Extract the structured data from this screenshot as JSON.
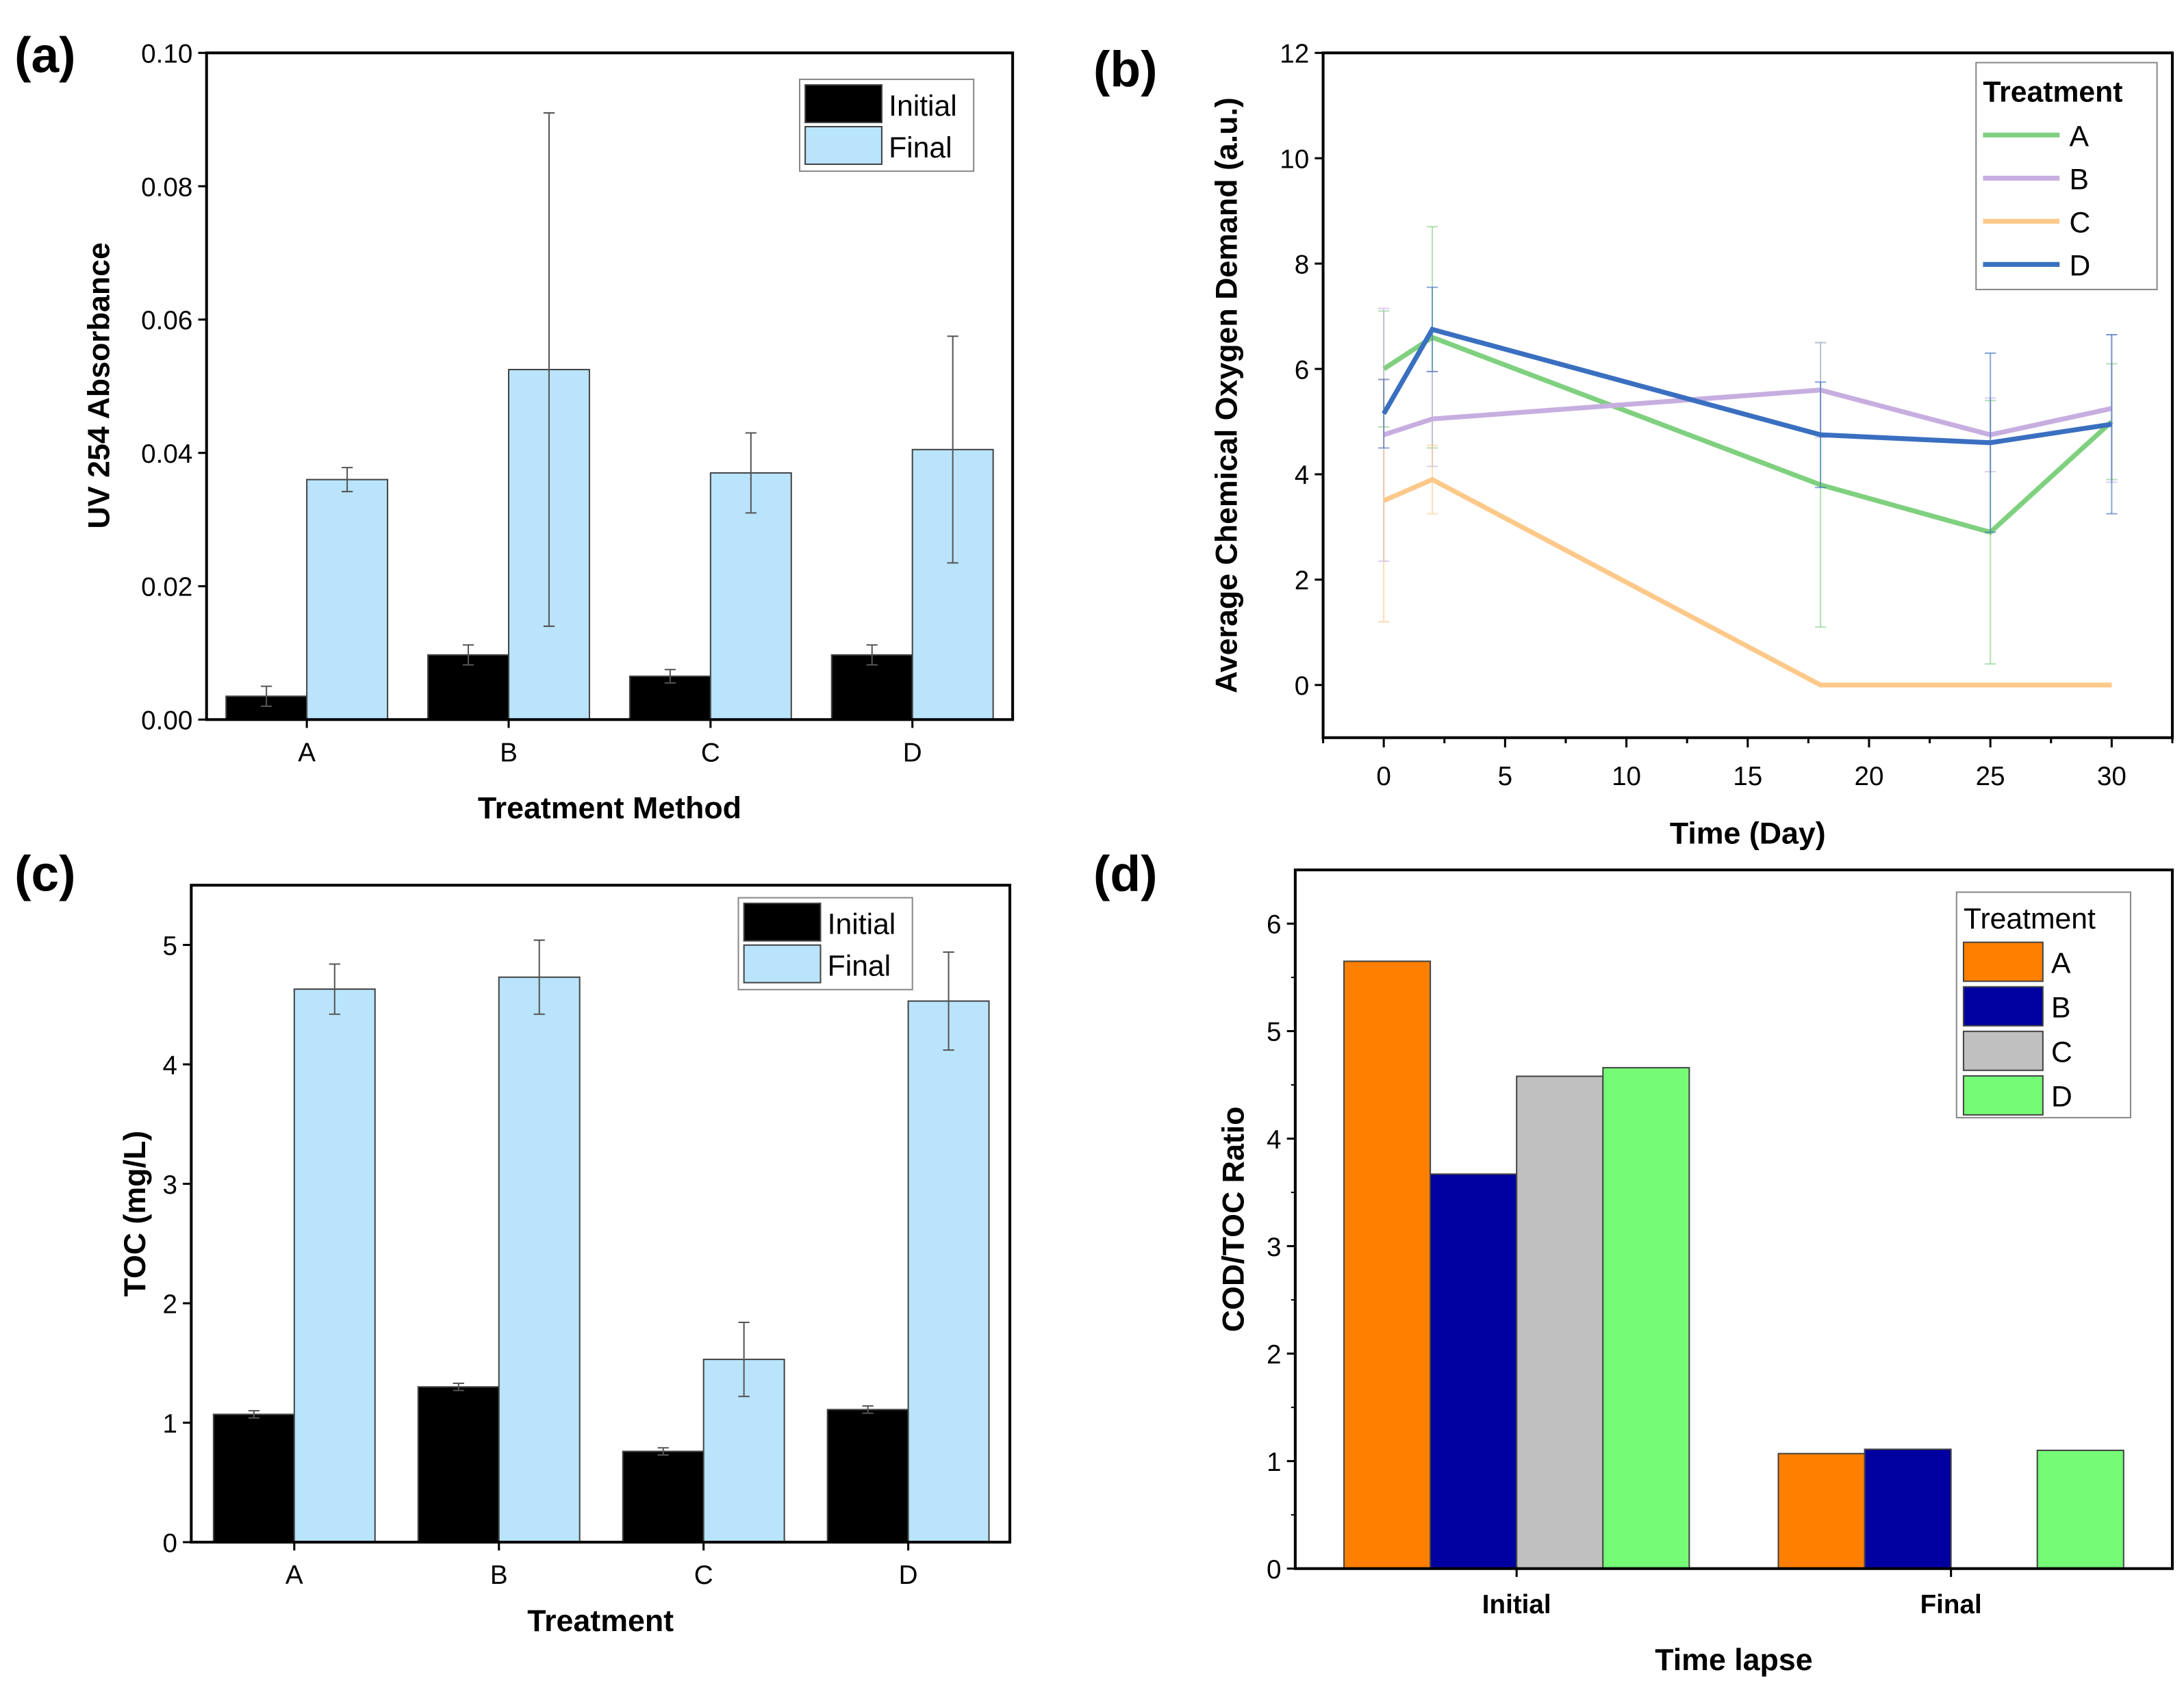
{
  "chart_data": [
    {
      "panel": "(a)",
      "type": "bar",
      "categories": [
        "A",
        "B",
        "C",
        "D"
      ],
      "series": [
        {
          "name": "Initial",
          "color": "#000000",
          "values": [
            0.0035,
            0.0097,
            0.0065,
            0.0097
          ],
          "errors": [
            0.0015,
            0.0015,
            0.001,
            0.0015
          ]
        },
        {
          "name": "Final",
          "color": "#b9e4fb",
          "values": [
            0.036,
            0.0525,
            0.037,
            0.0405
          ],
          "errors": [
            0.0018,
            0.0385,
            0.006,
            0.017
          ]
        }
      ],
      "xlabel": "Treatment Method",
      "ylabel": "UV 254 Absorbance",
      "ylim": [
        0,
        0.1
      ],
      "yticks": [
        "0.00",
        "0.02",
        "0.04",
        "0.06",
        "0.08",
        "0.10"
      ],
      "legend": "top-right"
    },
    {
      "panel": "(b)",
      "type": "line",
      "x": [
        0,
        2,
        18,
        25,
        30
      ],
      "series": [
        {
          "name": "A",
          "color": "#7fd07f",
          "values": [
            6.0,
            6.6,
            3.8,
            2.9,
            5.0
          ],
          "errors": [
            1.1,
            2.1,
            2.7,
            2.5,
            1.1
          ]
        },
        {
          "name": "B",
          "color": "#c7aee0",
          "values": [
            4.75,
            5.05,
            5.6,
            4.75,
            5.25
          ],
          "errors": [
            2.4,
            0.9,
            0.9,
            0.7,
            1.4
          ]
        },
        {
          "name": "C",
          "color": "#fdc98a",
          "values": [
            3.5,
            3.9,
            0,
            0,
            0
          ],
          "errors": [
            2.3,
            0.65,
            0,
            0,
            0
          ]
        },
        {
          "name": "D",
          "color": "#3a6fc0",
          "values": [
            5.15,
            6.75,
            4.75,
            4.6,
            4.95
          ],
          "errors": [
            0.65,
            0.8,
            1.0,
            1.7,
            1.7
          ]
        }
      ],
      "xlabel": "Time (Day)",
      "ylabel": "Average Chemical Oxygen Demand (a.u.)",
      "xlim": [
        -2.5,
        32.5
      ],
      "ylim": [
        -1,
        12
      ],
      "xticks": [
        "0",
        "5",
        "10",
        "15",
        "20",
        "25",
        "30"
      ],
      "yticks": [
        "0",
        "2",
        "4",
        "6",
        "8",
        "10",
        "12"
      ],
      "legend_title": "Treatment",
      "legend": "top-right"
    },
    {
      "panel": "(c)",
      "type": "bar",
      "categories": [
        "A",
        "B",
        "C",
        "D"
      ],
      "series": [
        {
          "name": "Initial",
          "color": "#000000",
          "values": [
            1.07,
            1.3,
            0.76,
            1.11
          ],
          "errors": [
            0.03,
            0.03,
            0.03,
            0.03
          ]
        },
        {
          "name": "Final",
          "color": "#b9e4fb",
          "values": [
            4.63,
            4.73,
            1.53,
            4.53
          ],
          "errors": [
            0.21,
            0.31,
            0.31,
            0.41
          ]
        }
      ],
      "xlabel": "Treatment",
      "ylabel": "TOC (mg/L)",
      "ylim": [
        0,
        5.5
      ],
      "yticks": [
        "0",
        "1",
        "2",
        "3",
        "4",
        "5"
      ],
      "legend": "top-right"
    },
    {
      "panel": "(d)",
      "type": "bar",
      "categories": [
        "Initial",
        "Final"
      ],
      "series": [
        {
          "name": "A",
          "color": "#ff7f00",
          "values": [
            5.65,
            1.07
          ]
        },
        {
          "name": "B",
          "color": "#0000a0",
          "values": [
            3.67,
            1.11
          ]
        },
        {
          "name": "C",
          "color": "#c0c0c0",
          "values": [
            4.58,
            0
          ]
        },
        {
          "name": "D",
          "color": "#75fb75",
          "values": [
            4.66,
            1.1
          ]
        }
      ],
      "xlabel": "Time lapse",
      "ylabel": "COD/TOC Ratio",
      "ylim": [
        0,
        6.5
      ],
      "yticks": [
        "0",
        "1",
        "2",
        "3",
        "4",
        "5",
        "6"
      ],
      "legend_title": "Treatment",
      "legend": "top-right"
    }
  ]
}
